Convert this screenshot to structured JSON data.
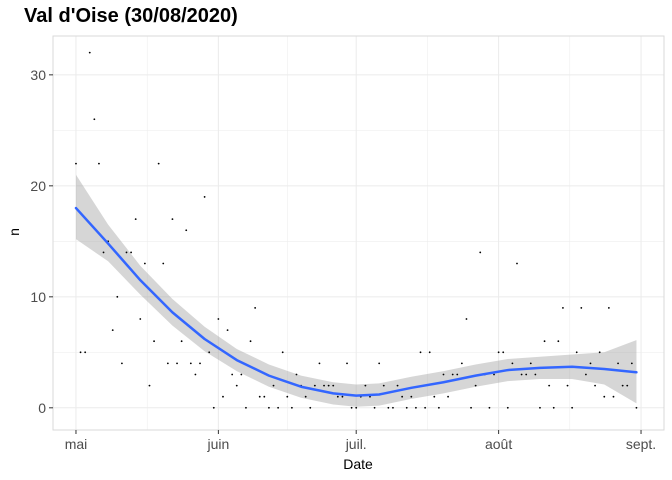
{
  "chart_data": {
    "type": "scatter",
    "title": "Val d'Oise (30/08/2020)",
    "xlabel": "Date",
    "ylabel": "n",
    "x_ticks": [
      "2020-05-01",
      "2020-06-01",
      "2020-07-01",
      "2020-08-01",
      "2020-09-01"
    ],
    "x_tick_labels": [
      "mai",
      "juin",
      "juil.",
      "août",
      "sept."
    ],
    "y_ticks": [
      0,
      10,
      20,
      30
    ],
    "xlim": [
      "2020-04-26",
      "2020-09-06"
    ],
    "ylim": [
      -2,
      33.5
    ],
    "grid": true,
    "colors": {
      "points": "#000000",
      "smooth_line": "#3366ff",
      "ribbon": "#999999",
      "grid": "#ebebeb",
      "panel_border": "#d9d9d9"
    },
    "points": [
      {
        "x": "2020-05-01",
        "y": 22
      },
      {
        "x": "2020-05-02",
        "y": 5
      },
      {
        "x": "2020-05-03",
        "y": 5
      },
      {
        "x": "2020-05-04",
        "y": 32
      },
      {
        "x": "2020-05-05",
        "y": 26
      },
      {
        "x": "2020-05-06",
        "y": 22
      },
      {
        "x": "2020-05-07",
        "y": 14
      },
      {
        "x": "2020-05-08",
        "y": 15
      },
      {
        "x": "2020-05-09",
        "y": 7
      },
      {
        "x": "2020-05-10",
        "y": 10
      },
      {
        "x": "2020-05-11",
        "y": 4
      },
      {
        "x": "2020-05-12",
        "y": 14
      },
      {
        "x": "2020-05-13",
        "y": 14
      },
      {
        "x": "2020-05-14",
        "y": 17
      },
      {
        "x": "2020-05-15",
        "y": 8
      },
      {
        "x": "2020-05-16",
        "y": 13
      },
      {
        "x": "2020-05-17",
        "y": 2
      },
      {
        "x": "2020-05-18",
        "y": 6
      },
      {
        "x": "2020-05-19",
        "y": 22
      },
      {
        "x": "2020-05-20",
        "y": 13
      },
      {
        "x": "2020-05-21",
        "y": 4
      },
      {
        "x": "2020-05-22",
        "y": 17
      },
      {
        "x": "2020-05-23",
        "y": 4
      },
      {
        "x": "2020-05-24",
        "y": 6
      },
      {
        "x": "2020-05-25",
        "y": 16
      },
      {
        "x": "2020-05-26",
        "y": 4
      },
      {
        "x": "2020-05-27",
        "y": 3
      },
      {
        "x": "2020-05-28",
        "y": 4
      },
      {
        "x": "2020-05-29",
        "y": 19
      },
      {
        "x": "2020-05-30",
        "y": 5
      },
      {
        "x": "2020-05-31",
        "y": 0
      },
      {
        "x": "2020-06-01",
        "y": 8
      },
      {
        "x": "2020-06-02",
        "y": 1
      },
      {
        "x": "2020-06-03",
        "y": 7
      },
      {
        "x": "2020-06-04",
        "y": 3
      },
      {
        "x": "2020-06-05",
        "y": 2
      },
      {
        "x": "2020-06-06",
        "y": 3
      },
      {
        "x": "2020-06-07",
        "y": 0
      },
      {
        "x": "2020-06-08",
        "y": 6
      },
      {
        "x": "2020-06-09",
        "y": 9
      },
      {
        "x": "2020-06-10",
        "y": 1
      },
      {
        "x": "2020-06-11",
        "y": 1
      },
      {
        "x": "2020-06-12",
        "y": 0
      },
      {
        "x": "2020-06-13",
        "y": 2
      },
      {
        "x": "2020-06-14",
        "y": 0
      },
      {
        "x": "2020-06-15",
        "y": 5
      },
      {
        "x": "2020-06-16",
        "y": 1
      },
      {
        "x": "2020-06-17",
        "y": 0
      },
      {
        "x": "2020-06-18",
        "y": 3
      },
      {
        "x": "2020-06-19",
        "y": 2
      },
      {
        "x": "2020-06-20",
        "y": 1
      },
      {
        "x": "2020-06-21",
        "y": 0
      },
      {
        "x": "2020-06-22",
        "y": 2
      },
      {
        "x": "2020-06-23",
        "y": 4
      },
      {
        "x": "2020-06-24",
        "y": 2
      },
      {
        "x": "2020-06-25",
        "y": 2
      },
      {
        "x": "2020-06-26",
        "y": 2
      },
      {
        "x": "2020-06-27",
        "y": 1
      },
      {
        "x": "2020-06-28",
        "y": 1
      },
      {
        "x": "2020-06-29",
        "y": 4
      },
      {
        "x": "2020-06-30",
        "y": 0
      },
      {
        "x": "2020-07-01",
        "y": 0
      },
      {
        "x": "2020-07-02",
        "y": 1
      },
      {
        "x": "2020-07-03",
        "y": 2
      },
      {
        "x": "2020-07-04",
        "y": 1
      },
      {
        "x": "2020-07-05",
        "y": 0
      },
      {
        "x": "2020-07-06",
        "y": 4
      },
      {
        "x": "2020-07-07",
        "y": 2
      },
      {
        "x": "2020-07-08",
        "y": 0
      },
      {
        "x": "2020-07-09",
        "y": 0
      },
      {
        "x": "2020-07-10",
        "y": 2
      },
      {
        "x": "2020-07-11",
        "y": 1
      },
      {
        "x": "2020-07-12",
        "y": 0
      },
      {
        "x": "2020-07-13",
        "y": 1
      },
      {
        "x": "2020-07-14",
        "y": 0
      },
      {
        "x": "2020-07-15",
        "y": 5
      },
      {
        "x": "2020-07-16",
        "y": 0
      },
      {
        "x": "2020-07-17",
        "y": 5
      },
      {
        "x": "2020-07-18",
        "y": 1
      },
      {
        "x": "2020-07-19",
        "y": 0
      },
      {
        "x": "2020-07-20",
        "y": 3
      },
      {
        "x": "2020-07-21",
        "y": 1
      },
      {
        "x": "2020-07-22",
        "y": 3
      },
      {
        "x": "2020-07-23",
        "y": 3
      },
      {
        "x": "2020-07-24",
        "y": 4
      },
      {
        "x": "2020-07-25",
        "y": 8
      },
      {
        "x": "2020-07-26",
        "y": 0
      },
      {
        "x": "2020-07-27",
        "y": 2
      },
      {
        "x": "2020-07-28",
        "y": 14
      },
      {
        "x": "2020-07-29",
        "y": 3
      },
      {
        "x": "2020-07-30",
        "y": 0
      },
      {
        "x": "2020-07-31",
        "y": 3
      },
      {
        "x": "2020-08-01",
        "y": 5
      },
      {
        "x": "2020-08-02",
        "y": 5
      },
      {
        "x": "2020-08-03",
        "y": 0
      },
      {
        "x": "2020-08-04",
        "y": 4
      },
      {
        "x": "2020-08-05",
        "y": 13
      },
      {
        "x": "2020-08-06",
        "y": 3
      },
      {
        "x": "2020-08-07",
        "y": 3
      },
      {
        "x": "2020-08-08",
        "y": 4
      },
      {
        "x": "2020-08-09",
        "y": 3
      },
      {
        "x": "2020-08-10",
        "y": 0
      },
      {
        "x": "2020-08-11",
        "y": 6
      },
      {
        "x": "2020-08-12",
        "y": 2
      },
      {
        "x": "2020-08-13",
        "y": 0
      },
      {
        "x": "2020-08-14",
        "y": 6
      },
      {
        "x": "2020-08-15",
        "y": 9
      },
      {
        "x": "2020-08-16",
        "y": 2
      },
      {
        "x": "2020-08-17",
        "y": 0
      },
      {
        "x": "2020-08-18",
        "y": 5
      },
      {
        "x": "2020-08-19",
        "y": 9
      },
      {
        "x": "2020-08-20",
        "y": 3
      },
      {
        "x": "2020-08-21",
        "y": 4
      },
      {
        "x": "2020-08-22",
        "y": 2
      },
      {
        "x": "2020-08-23",
        "y": 5
      },
      {
        "x": "2020-08-24",
        "y": 1
      },
      {
        "x": "2020-08-25",
        "y": 9
      },
      {
        "x": "2020-08-26",
        "y": 1
      },
      {
        "x": "2020-08-27",
        "y": 4
      },
      {
        "x": "2020-08-28",
        "y": 2
      },
      {
        "x": "2020-08-29",
        "y": 2
      },
      {
        "x": "2020-08-30",
        "y": 4
      },
      {
        "x": "2020-08-31",
        "y": 0
      }
    ],
    "smooth": [
      {
        "x": "2020-05-01",
        "y": 18.0,
        "lower": 15.2,
        "upper": 21.0
      },
      {
        "x": "2020-05-08",
        "y": 14.8,
        "lower": 13.2,
        "upper": 16.5
      },
      {
        "x": "2020-05-15",
        "y": 11.5,
        "lower": 10.2,
        "upper": 12.8
      },
      {
        "x": "2020-05-22",
        "y": 8.6,
        "lower": 7.4,
        "upper": 9.8
      },
      {
        "x": "2020-05-29",
        "y": 6.2,
        "lower": 5.1,
        "upper": 7.3
      },
      {
        "x": "2020-06-05",
        "y": 4.3,
        "lower": 3.3,
        "upper": 5.3
      },
      {
        "x": "2020-06-12",
        "y": 2.9,
        "lower": 1.9,
        "upper": 3.9
      },
      {
        "x": "2020-06-19",
        "y": 1.9,
        "lower": 0.9,
        "upper": 2.9
      },
      {
        "x": "2020-06-26",
        "y": 1.3,
        "lower": 0.3,
        "upper": 2.3
      },
      {
        "x": "2020-07-01",
        "y": 1.1,
        "lower": 0.1,
        "upper": 2.1
      },
      {
        "x": "2020-07-06",
        "y": 1.2,
        "lower": 0.2,
        "upper": 2.2
      },
      {
        "x": "2020-07-13",
        "y": 1.8,
        "lower": 0.8,
        "upper": 2.8
      },
      {
        "x": "2020-07-20",
        "y": 2.3,
        "lower": 1.3,
        "upper": 3.3
      },
      {
        "x": "2020-07-27",
        "y": 2.9,
        "lower": 1.9,
        "upper": 3.9
      },
      {
        "x": "2020-08-03",
        "y": 3.4,
        "lower": 2.4,
        "upper": 4.4
      },
      {
        "x": "2020-08-10",
        "y": 3.6,
        "lower": 2.6,
        "upper": 4.6
      },
      {
        "x": "2020-08-17",
        "y": 3.7,
        "lower": 2.6,
        "upper": 4.8
      },
      {
        "x": "2020-08-24",
        "y": 3.5,
        "lower": 2.1,
        "upper": 5.0
      },
      {
        "x": "2020-08-31",
        "y": 3.2,
        "lower": 0.4,
        "upper": 6.1
      }
    ]
  }
}
